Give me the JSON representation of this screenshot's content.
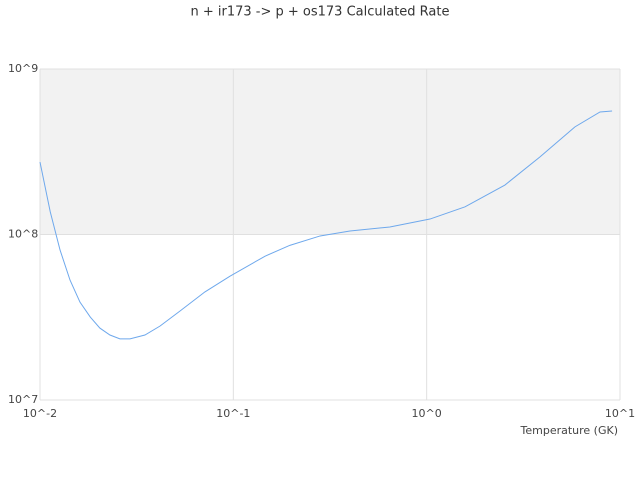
{
  "chart_data": {
    "type": "line",
    "title": "n + ir173 -> p + os173 Calculated Rate",
    "x_label": "Temperature (GK)",
    "x_log": true,
    "y_log": true,
    "grid": true,
    "color": "#6ea8ec",
    "band_color": "#f2f2f2",
    "xlim": [
      0.01,
      10
    ],
    "ylim": [
      10000000,
      1000000000
    ],
    "xticks": [
      {
        "value": 0.01,
        "label": "10^-2"
      },
      {
        "value": 0.1,
        "label": "10^-1"
      },
      {
        "value": 1,
        "label": "10^0"
      },
      {
        "value": 10,
        "label": "10^1"
      }
    ],
    "yticks": [
      {
        "value": 10000000,
        "label": "10^7"
      },
      {
        "value": 100000000,
        "label": "10^8"
      },
      {
        "value": 1000000000,
        "label": "10^9"
      }
    ],
    "x": [
      0.01,
      0.0113,
      0.0127,
      0.0143,
      0.0161,
      0.0182,
      0.0204,
      0.023,
      0.0259,
      0.0292,
      0.0349,
      0.0418,
      0.053,
      0.0713,
      0.0961,
      0.146,
      0.196,
      0.281,
      0.401,
      0.645,
      1.04,
      1.58,
      2.54,
      3.85,
      5.85,
      7.88,
      9.1
    ],
    "values": [
      274000000,
      137000000,
      80500000,
      53000000,
      39000000,
      31700000,
      27200000,
      24700000,
      23400000,
      23400000,
      24700000,
      28000000,
      34500000,
      45000000,
      56000000,
      74000000,
      86000000,
      98000000,
      105000000,
      111000000,
      124000000,
      147000000,
      199000000,
      294000000,
      447000000,
      550000000,
      557000000
    ]
  }
}
